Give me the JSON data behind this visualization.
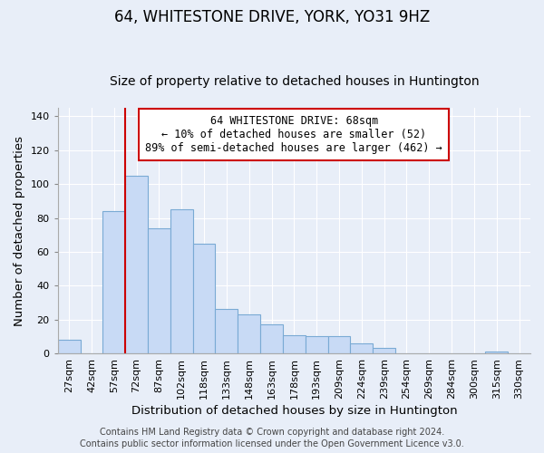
{
  "title": "64, WHITESTONE DRIVE, YORK, YO31 9HZ",
  "subtitle": "Size of property relative to detached houses in Huntington",
  "xlabel": "Distribution of detached houses by size in Huntington",
  "ylabel": "Number of detached properties",
  "categories": [
    "27sqm",
    "42sqm",
    "57sqm",
    "72sqm",
    "87sqm",
    "102sqm",
    "118sqm",
    "133sqm",
    "148sqm",
    "163sqm",
    "178sqm",
    "193sqm",
    "209sqm",
    "224sqm",
    "239sqm",
    "254sqm",
    "269sqm",
    "284sqm",
    "300sqm",
    "315sqm",
    "330sqm"
  ],
  "values": [
    8,
    0,
    84,
    105,
    74,
    85,
    65,
    26,
    23,
    17,
    11,
    10,
    10,
    6,
    3,
    0,
    0,
    0,
    0,
    1,
    0
  ],
  "bar_color": "#c8daf5",
  "bar_edge_color": "#7aaad4",
  "marker_line_color": "#cc0000",
  "annotation_text": "64 WHITESTONE DRIVE: 68sqm\n← 10% of detached houses are smaller (52)\n89% of semi-detached houses are larger (462) →",
  "annotation_box_color": "#ffffff",
  "annotation_box_edge": "#cc0000",
  "ylim": [
    0,
    145
  ],
  "yticks": [
    0,
    20,
    40,
    60,
    80,
    100,
    120,
    140
  ],
  "footer_line1": "Contains HM Land Registry data © Crown copyright and database right 2024.",
  "footer_line2": "Contains public sector information licensed under the Open Government Licence v3.0.",
  "bg_color": "#e8eef8",
  "plot_bg_color": "#e8eef8",
  "grid_color": "#ffffff",
  "title_fontsize": 12,
  "subtitle_fontsize": 10,
  "axis_label_fontsize": 9.5,
  "tick_fontsize": 8,
  "footer_fontsize": 7,
  "annotation_fontsize": 8.5
}
